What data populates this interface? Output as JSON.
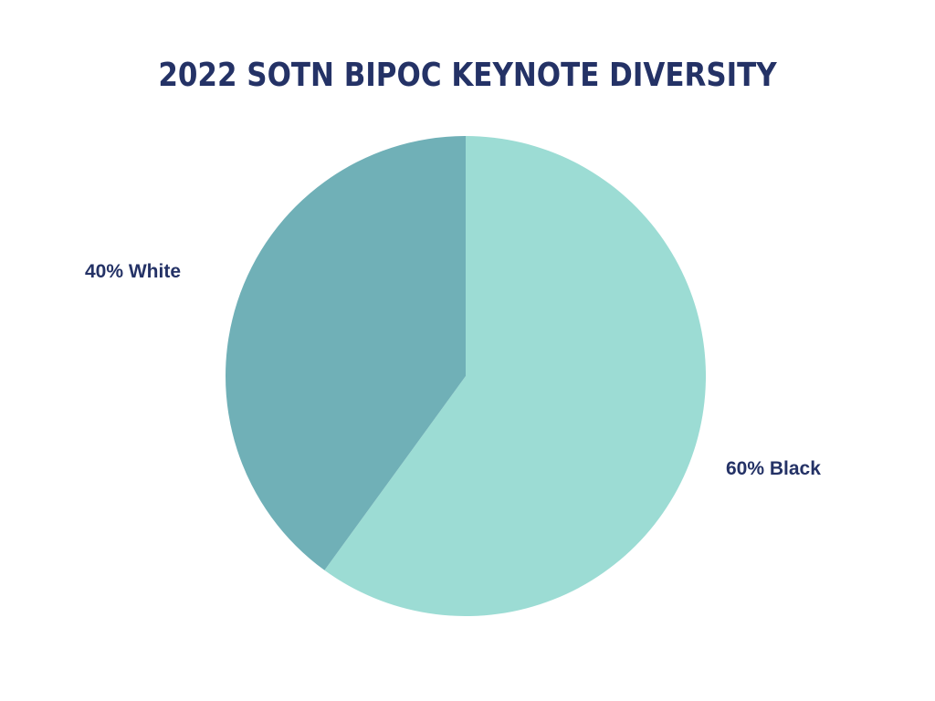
{
  "chart_data": {
    "type": "pie",
    "title": "2022 SOTN BIPOC KEYNOTE DIVERSITY",
    "slices": [
      {
        "label": "60% Black",
        "value": 60,
        "color": "#9cdcd4"
      },
      {
        "label": "40% White",
        "value": 40,
        "color": "#70b0b7"
      }
    ],
    "start_angle_deg": 0,
    "direction": "clockwise"
  },
  "colors": {
    "title": "#243266",
    "label": "#243266",
    "background": "#ffffff"
  }
}
